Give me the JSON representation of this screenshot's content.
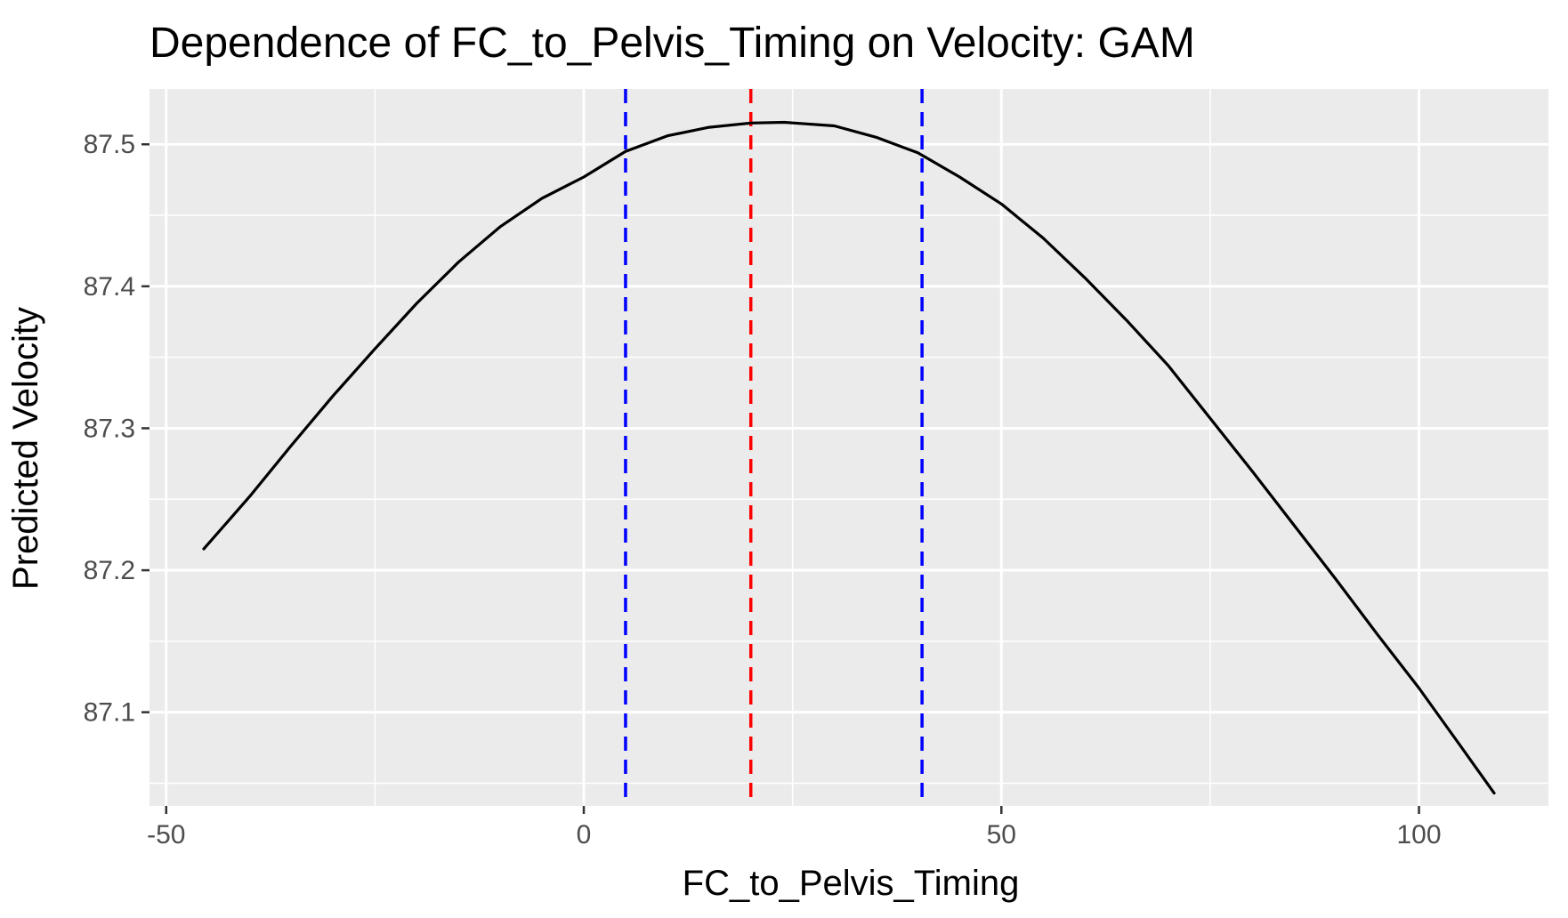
{
  "chart_data": {
    "type": "line",
    "title": "Dependence of FC_to_Pelvis_Timing on Velocity: GAM",
    "xlabel": "FC_to_Pelvis_Timing",
    "ylabel": "Predicted Velocity",
    "xlim": [
      -52,
      115.5
    ],
    "ylim": [
      87.034,
      87.539
    ],
    "x_ticks": [
      {
        "value": -50,
        "label": "-50"
      },
      {
        "value": 0,
        "label": "0"
      },
      {
        "value": 50,
        "label": "50"
      },
      {
        "value": 100,
        "label": "100"
      }
    ],
    "y_ticks": [
      {
        "value": 87.1,
        "label": "87.1"
      },
      {
        "value": 87.2,
        "label": "87.2"
      },
      {
        "value": 87.3,
        "label": "87.3"
      },
      {
        "value": 87.4,
        "label": "87.4"
      },
      {
        "value": 87.5,
        "label": "87.5"
      }
    ],
    "x_minor_ticks": [
      -25,
      25,
      75
    ],
    "y_minor_ticks": [
      87.05,
      87.15,
      87.25,
      87.35,
      87.45
    ],
    "grid": true,
    "series": [
      {
        "color": "#000000",
        "x": [
          -45.5,
          -40,
          -35,
          -30,
          -25,
          -20,
          -15,
          -10,
          -5,
          0,
          5,
          10,
          15,
          20,
          24,
          30,
          35,
          40,
          45,
          50,
          55,
          60,
          65,
          70,
          75,
          80,
          85,
          90,
          95,
          100,
          105,
          109
        ],
        "y": [
          87.215,
          87.252,
          87.288,
          87.323,
          87.356,
          87.388,
          87.417,
          87.442,
          87.462,
          87.477,
          87.495,
          87.506,
          87.512,
          87.515,
          87.5155,
          87.513,
          87.505,
          87.494,
          87.477,
          87.458,
          87.434,
          87.406,
          87.376,
          87.344,
          87.307,
          87.27,
          87.232,
          87.194,
          87.155,
          87.117,
          87.076,
          87.043
        ]
      }
    ],
    "vlines": [
      {
        "x": 5,
        "color": "#0000ff",
        "style": "dashed"
      },
      {
        "x": 20,
        "color": "#ff0000",
        "style": "dashed"
      },
      {
        "x": 40.5,
        "color": "#0000ff",
        "style": "dashed"
      }
    ],
    "colors": {
      "panel_background": "#ebebeb",
      "grid": "#ffffff",
      "tick_text": "#4d4d4d",
      "tick_mark": "#333333"
    }
  }
}
